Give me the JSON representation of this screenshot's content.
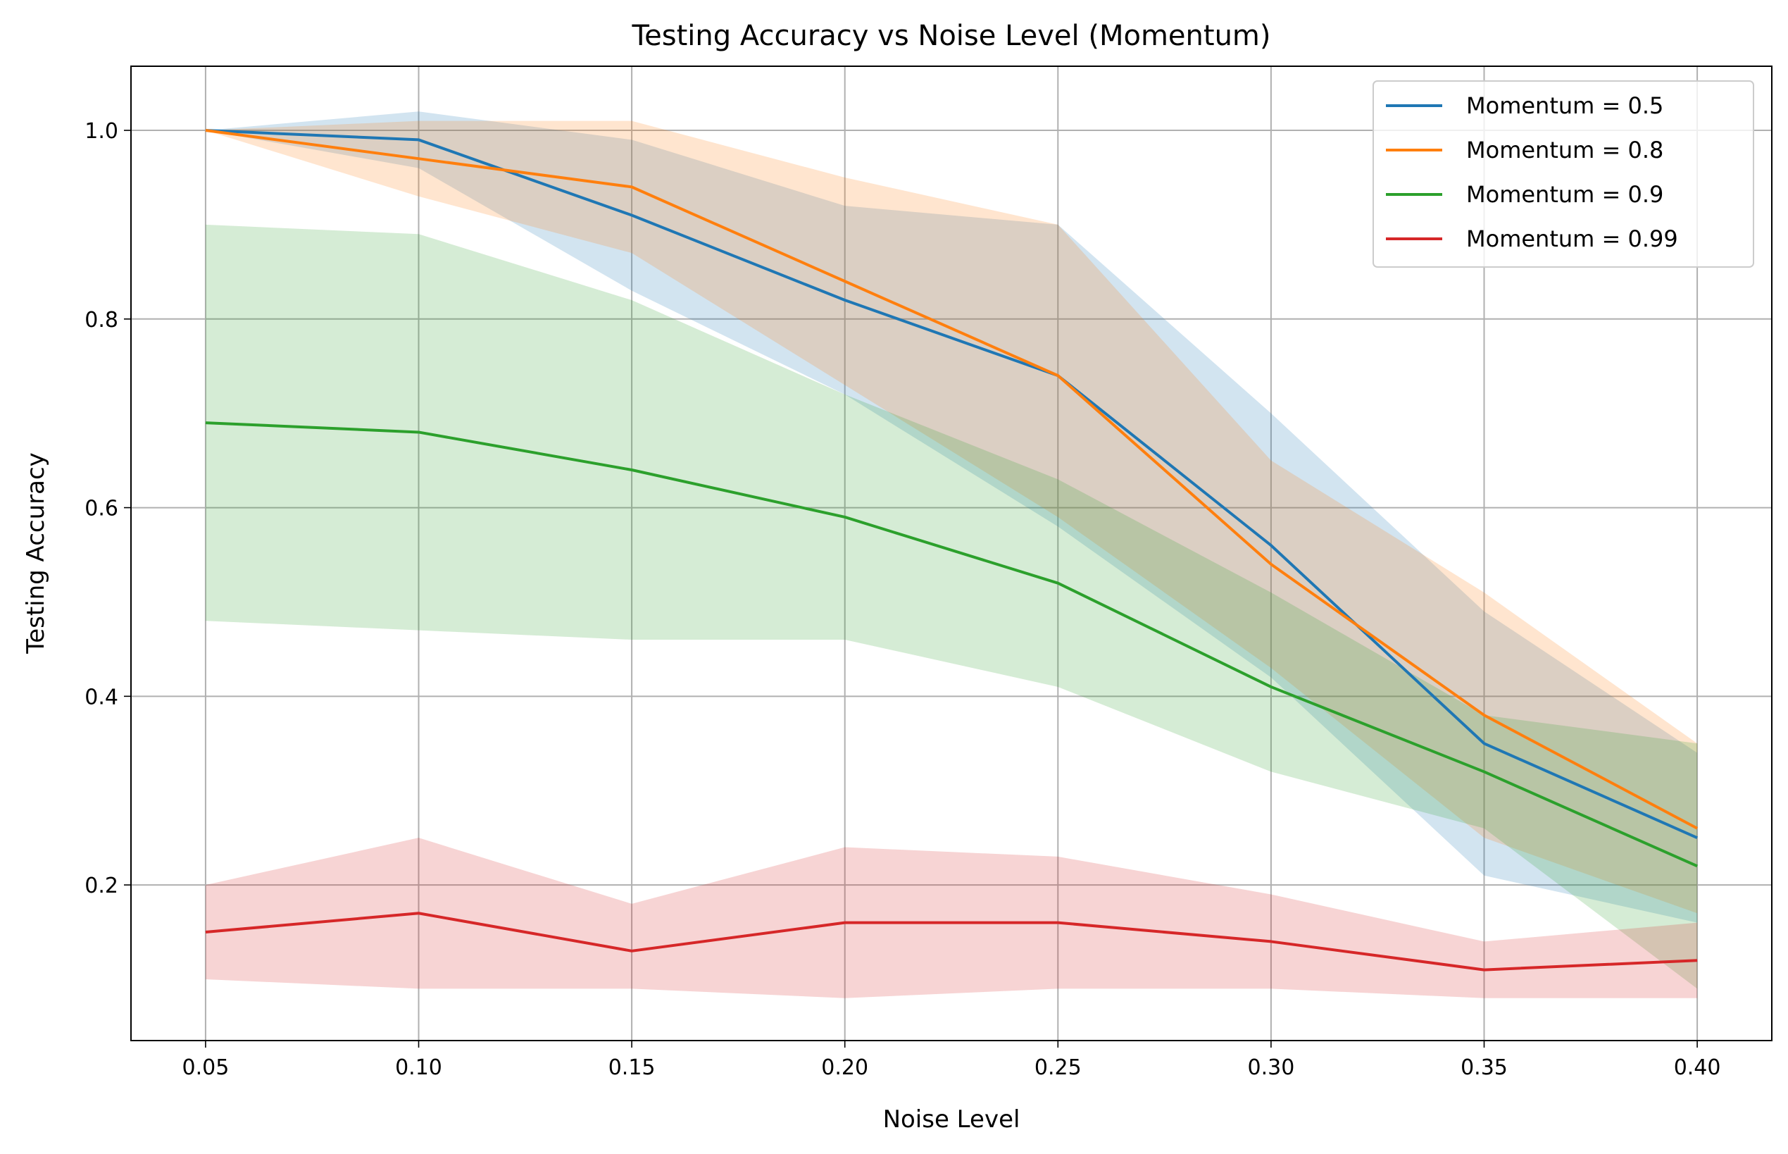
{
  "chart_data": {
    "type": "line",
    "title": "Testing Accuracy vs Noise Level (Momentum)",
    "xlabel": "Noise Level",
    "ylabel": "Testing Accuracy",
    "x": [
      0.05,
      0.1,
      0.15,
      0.2,
      0.25,
      0.3,
      0.35,
      0.4
    ],
    "x_tick_labels": [
      "0.05",
      "0.10",
      "0.15",
      "0.20",
      "0.25",
      "0.30",
      "0.35",
      "0.40"
    ],
    "y_ticks": [
      0.2,
      0.4,
      0.6,
      0.8,
      1.0
    ],
    "y_tick_labels": [
      "0.2",
      "0.4",
      "0.6",
      "0.8",
      "1.0"
    ],
    "xlim": [
      0.0325,
      0.4175
    ],
    "ylim": [
      0.035,
      1.068
    ],
    "grid": true,
    "legend_position": "top-right",
    "series": [
      {
        "name": "Momentum = 0.5",
        "color": "#1f77b4",
        "values": [
          1.0,
          0.99,
          0.91,
          0.82,
          0.74,
          0.56,
          0.35,
          0.25
        ],
        "lower": [
          1.0,
          0.96,
          0.83,
          0.72,
          0.58,
          0.42,
          0.21,
          0.16
        ],
        "upper": [
          1.0,
          1.02,
          0.99,
          0.92,
          0.9,
          0.7,
          0.49,
          0.34
        ]
      },
      {
        "name": "Momentum = 0.8",
        "color": "#ff7f0e",
        "values": [
          1.0,
          0.97,
          0.94,
          0.84,
          0.74,
          0.54,
          0.38,
          0.26
        ],
        "lower": [
          1.0,
          0.93,
          0.87,
          0.73,
          0.59,
          0.43,
          0.25,
          0.17
        ],
        "upper": [
          1.0,
          1.01,
          1.01,
          0.95,
          0.9,
          0.65,
          0.51,
          0.35
        ]
      },
      {
        "name": "Momentum = 0.9",
        "color": "#2ca02c",
        "values": [
          0.69,
          0.68,
          0.64,
          0.59,
          0.52,
          0.41,
          0.32,
          0.22
        ],
        "lower": [
          0.48,
          0.47,
          0.46,
          0.46,
          0.41,
          0.32,
          0.26,
          0.09
        ],
        "upper": [
          0.9,
          0.89,
          0.82,
          0.72,
          0.63,
          0.51,
          0.38,
          0.35
        ]
      },
      {
        "name": "Momentum = 0.99",
        "color": "#d62728",
        "values": [
          0.15,
          0.17,
          0.13,
          0.16,
          0.16,
          0.14,
          0.11,
          0.12
        ],
        "lower": [
          0.1,
          0.09,
          0.09,
          0.08,
          0.09,
          0.09,
          0.08,
          0.08
        ],
        "upper": [
          0.2,
          0.25,
          0.18,
          0.24,
          0.23,
          0.19,
          0.14,
          0.16
        ]
      }
    ]
  }
}
